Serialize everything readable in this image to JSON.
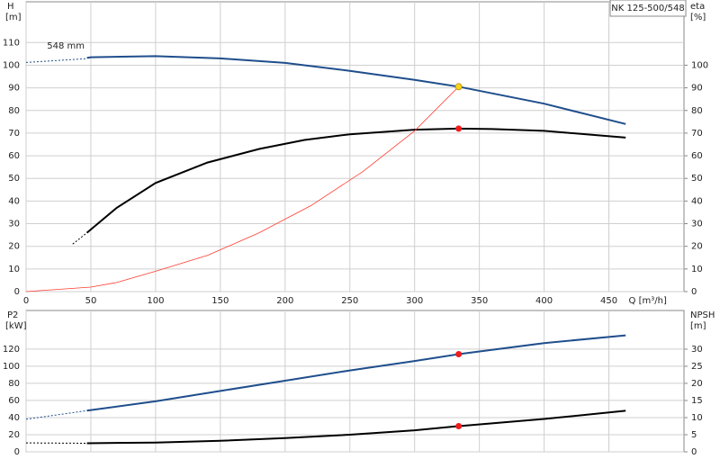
{
  "chart_data": [
    {
      "type": "line",
      "title": "NK 125-500/548",
      "y_label": "H",
      "y_unit": "[m]",
      "y2_label": "eta",
      "y2_unit": "[%]",
      "x_label": "Q [m³/h]",
      "xlim": [
        0,
        508
      ],
      "xticks": [
        0,
        50,
        100,
        150,
        200,
        250,
        300,
        350,
        400,
        450
      ],
      "xticks_labeled": true,
      "ylim": [
        0,
        128
      ],
      "yticks": [
        0,
        10,
        20,
        30,
        40,
        50,
        60,
        70,
        80,
        90,
        100,
        110
      ],
      "y2lim": [
        0,
        128
      ],
      "y2ticks": [
        0,
        10,
        20,
        30,
        40,
        50,
        60,
        70,
        80,
        90,
        100
      ],
      "grid": true,
      "annotations": [
        {
          "text": "548 mm",
          "x": 12,
          "y": 105
        }
      ],
      "series": [
        {
          "color": "#1f4e8c",
          "dash": true,
          "line_width": 1,
          "x": [
            0,
            47
          ],
          "values": [
            101.2,
            102.9
          ]
        },
        {
          "color": "#1f4e8c",
          "dash": false,
          "line_width": 2,
          "x": [
            47,
            50,
            100,
            150,
            200,
            250,
            300,
            334,
            400,
            463
          ],
          "values": [
            103.2,
            103.5,
            104,
            103,
            101,
            97.5,
            93.5,
            90.5,
            83,
            74
          ]
        },
        {
          "color": "#000000",
          "dash": true,
          "line_width": 1,
          "axis": "y2",
          "x": [
            36,
            47
          ],
          "values": [
            21,
            26
          ]
        },
        {
          "color": "#000000",
          "dash": false,
          "line_width": 2,
          "axis": "y2",
          "x": [
            47,
            70,
            100,
            140,
            180,
            215,
            250,
            300,
            334,
            360,
            400,
            463
          ],
          "values": [
            26,
            37,
            48,
            57,
            63,
            67,
            69.5,
            71.5,
            72,
            71.8,
            71,
            68
          ]
        },
        {
          "color": "#ff3b2f",
          "dash": false,
          "line_width": 0.8,
          "x": [
            0,
            50,
            70,
            100,
            140,
            180,
            220,
            260,
            300,
            334
          ],
          "values": [
            0,
            2,
            4,
            9,
            16,
            26,
            38,
            53,
            71,
            90.5
          ]
        }
      ],
      "points": [
        {
          "x": 334,
          "y": 90.5,
          "color": "#f7d51d"
        },
        {
          "x": 334,
          "y": 72,
          "color": "#ee1c1c",
          "axis": "y2"
        }
      ]
    },
    {
      "type": "line",
      "y_label": "P2",
      "y_unit": "[kW]",
      "y2_label": "NPSH",
      "y2_unit": "[m]",
      "xlim": [
        0,
        508
      ],
      "xticks": [
        0,
        50,
        100,
        150,
        200,
        250,
        300,
        350,
        400,
        450
      ],
      "xticks_labeled": false,
      "ylim": [
        0,
        165
      ],
      "yticks": [
        0,
        20,
        40,
        60,
        80,
        100,
        120
      ],
      "y2lim": [
        0,
        41.3
      ],
      "y2ticks": [
        0,
        5,
        10,
        15,
        20,
        25,
        30
      ],
      "grid": true,
      "series": [
        {
          "color": "#1f4e8c",
          "dash": true,
          "line_width": 1,
          "x": [
            0,
            47
          ],
          "values": [
            38,
            48
          ]
        },
        {
          "color": "#1f4e8c",
          "dash": false,
          "line_width": 2,
          "x": [
            47,
            100,
            150,
            200,
            250,
            300,
            334,
            400,
            463
          ],
          "values": [
            48,
            59,
            71,
            83,
            95,
            106,
            114,
            127,
            136
          ]
        },
        {
          "color": "#000000",
          "dash": true,
          "line_width": 1,
          "axis": "y2",
          "x": [
            0,
            47
          ],
          "values": [
            2.6,
            2.5
          ]
        },
        {
          "color": "#000000",
          "dash": false,
          "line_width": 2,
          "axis": "y2",
          "x": [
            47,
            100,
            150,
            200,
            250,
            300,
            334,
            400,
            463
          ],
          "values": [
            2.5,
            2.7,
            3.2,
            4,
            5,
            6.3,
            7.5,
            9.6,
            12
          ]
        }
      ],
      "points": [
        {
          "x": 334,
          "y": 114,
          "color": "#ee1c1c"
        },
        {
          "x": 334,
          "y": 7.5,
          "color": "#ee1c1c",
          "axis": "y2"
        }
      ]
    }
  ]
}
